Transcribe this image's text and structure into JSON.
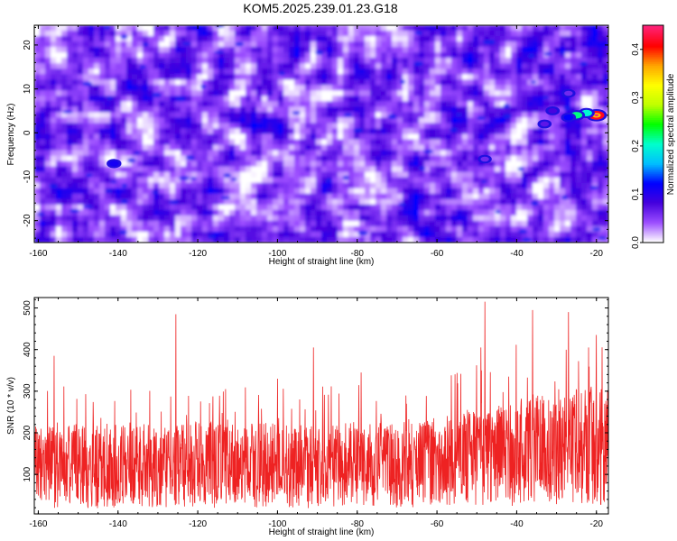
{
  "title": "KOM5.2025.239.01.23.G18",
  "chart_data": [
    {
      "type": "heatmap",
      "xlabel": "Height of straight line (km)",
      "ylabel": "Frequency (Hz)",
      "xlim": [
        -161,
        -17
      ],
      "ylim": [
        -25,
        24.5
      ],
      "xticks": [
        -160,
        -140,
        -120,
        -100,
        -80,
        -60,
        -40,
        -20
      ],
      "yticks": [
        -20,
        -10,
        0,
        10,
        20
      ],
      "colorbar": {
        "label": "Normalized spectral amplitude",
        "range": [
          0,
          0.45
        ],
        "ticks": [
          0.0,
          0.1,
          0.2,
          0.3,
          0.4
        ],
        "colors": [
          "#ffffff",
          "#9b4dff",
          "#4400dd",
          "#0000ff",
          "#00bfff",
          "#00ffcc",
          "#00ff00",
          "#bfff00",
          "#ffff00",
          "#ffa500",
          "#ff0000",
          "#ff2277"
        ]
      },
      "features": [
        {
          "x": -20,
          "y": 4,
          "value": 0.42
        },
        {
          "x": -22.5,
          "y": 4.5,
          "value": 0.2
        },
        {
          "x": -25,
          "y": 4,
          "value": 0.22
        },
        {
          "x": -27,
          "y": 3.5,
          "value": 0.12
        },
        {
          "x": -31,
          "y": 5,
          "value": 0.08
        },
        {
          "x": -33,
          "y": 2,
          "value": 0.07
        },
        {
          "x": -141,
          "y": -7,
          "value": 0.11
        },
        {
          "x": -48,
          "y": -6,
          "value": 0.06
        },
        {
          "x": -27,
          "y": 9,
          "value": 0.06
        }
      ]
    },
    {
      "type": "line",
      "xlabel": "Height of straight line (km)",
      "ylabel": "SNR (10 * v/v)",
      "xlim": [
        -161,
        -17
      ],
      "ylim": [
        5,
        525
      ],
      "xticks": [
        -160,
        -140,
        -120,
        -100,
        -80,
        -60,
        -40,
        -20
      ],
      "yticks": [
        100,
        200,
        300,
        400,
        500
      ],
      "series": [
        {
          "color": "#ee2222",
          "values_description_points": [
            [
              -161,
              120
            ],
            [
              -155,
              130
            ],
            [
              -150,
              125
            ],
            [
              -140,
              130
            ],
            [
              -130,
              125
            ],
            [
              -120,
              130
            ],
            [
              -110,
              125
            ],
            [
              -100,
              130
            ],
            [
              -90,
              125
            ],
            [
              -80,
              130
            ],
            [
              -70,
              130
            ],
            [
              -60,
              135
            ],
            [
              -50,
              145
            ],
            [
              -45,
              150
            ],
            [
              -40,
              165
            ],
            [
              -30,
              170
            ],
            [
              -20,
              180
            ],
            [
              -17,
              175
            ]
          ],
          "peaks": [
            [
              -156,
              385
            ],
            [
              -125.5,
              485
            ],
            [
              -113,
              305
            ],
            [
              -100,
              330
            ],
            [
              -91,
              405
            ],
            [
              -79,
              345
            ],
            [
              -49,
              405
            ],
            [
              -48,
              515
            ],
            [
              -42,
              335
            ],
            [
              -36,
              495
            ],
            [
              -27,
              490
            ],
            [
              -22,
              405
            ],
            [
              -20,
              435
            ]
          ]
        }
      ]
    }
  ]
}
